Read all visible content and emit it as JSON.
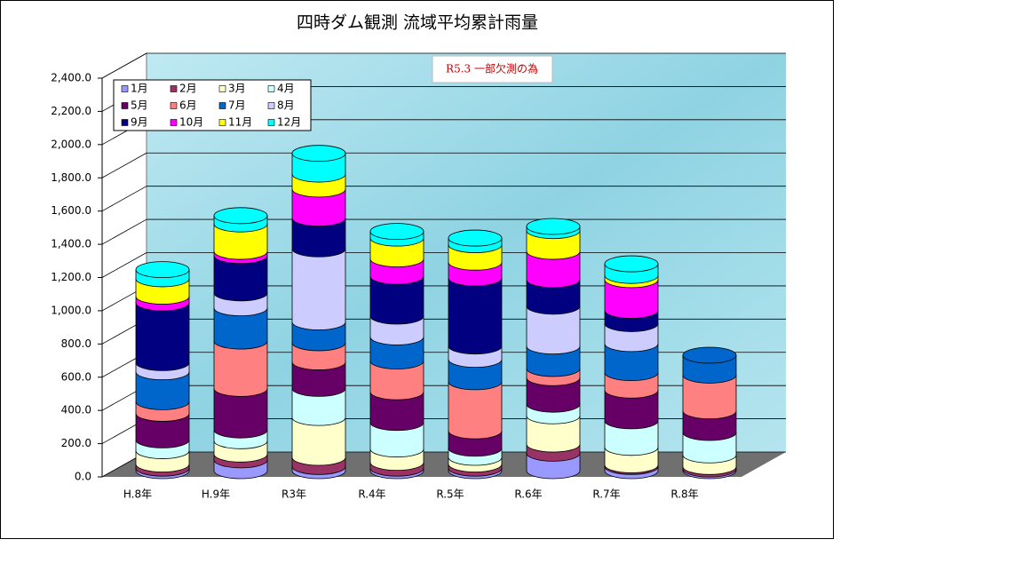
{
  "chart_data": {
    "type": "stacked-cylinder",
    "title": "四時ダム観測  流域平均累計雨量",
    "annotation": "R5.3 一部欠測の為",
    "categories": [
      "H.8年",
      "H.9年",
      "R3年",
      "R.4年",
      "R.5年",
      "R.6年",
      "R.7年",
      "R.8年"
    ],
    "ylim": [
      0,
      2400
    ],
    "yticks": [
      {
        "value": 0,
        "label": "0.0"
      },
      {
        "value": 200,
        "label": "200.0"
      },
      {
        "value": 400,
        "label": "400.0"
      },
      {
        "value": 600,
        "label": "600.0"
      },
      {
        "value": 800,
        "label": "800.0"
      },
      {
        "value": 1000,
        "label": "1,000.0"
      },
      {
        "value": 1200,
        "label": "1,200.0"
      },
      {
        "value": 1400,
        "label": "1,400.0"
      },
      {
        "value": 1600,
        "label": "1,600.0"
      },
      {
        "value": 1800,
        "label": "1,800.0"
      },
      {
        "value": 2000,
        "label": "2,000.0"
      },
      {
        "value": 2200,
        "label": "2,200.0"
      },
      {
        "value": 2400,
        "label": "2,400.0"
      }
    ],
    "grid": true,
    "legend": "upper-left",
    "series": [
      {
        "name": "1月",
        "color": "#9999ff",
        "values": [
          15,
          65,
          25,
          15,
          15,
          105,
          25,
          10
        ]
      },
      {
        "name": "2月",
        "color": "#993366",
        "values": [
          25,
          35,
          55,
          35,
          25,
          55,
          10,
          15
        ]
      },
      {
        "name": "3月",
        "color": "#ffffcc",
        "values": [
          80,
          80,
          240,
          80,
          40,
          170,
          105,
          70
        ]
      },
      {
        "name": "4月",
        "color": "#ccffff",
        "values": [
          65,
          65,
          175,
          160,
          55,
          70,
          160,
          135
        ]
      },
      {
        "name": "5月",
        "color": "#660066",
        "values": [
          160,
          250,
          160,
          185,
          105,
          160,
          185,
          130
        ]
      },
      {
        "name": "6月",
        "color": "#ff8080",
        "values": [
          70,
          285,
          115,
          185,
          295,
          55,
          105,
          215
        ]
      },
      {
        "name": "7月",
        "color": "#0066cc",
        "values": [
          180,
          200,
          125,
          145,
          135,
          135,
          175,
          120
        ]
      },
      {
        "name": "8月",
        "color": "#ccccff",
        "values": [
          55,
          90,
          440,
          125,
          80,
          240,
          120,
          null
        ]
      },
      {
        "name": "9月",
        "color": "#000080",
        "values": [
          360,
          225,
          185,
          240,
          410,
          160,
          80,
          null
        ]
      },
      {
        "name": "10月",
        "color": "#ff00ff",
        "values": [
          40,
          25,
          175,
          105,
          95,
          170,
          185,
          null
        ]
      },
      {
        "name": "11月",
        "color": "#ffff00",
        "values": [
          105,
          165,
          90,
          125,
          105,
          125,
          25,
          null
        ]
      },
      {
        "name": "12月",
        "color": "#00ffff",
        "values": [
          55,
          50,
          125,
          40,
          40,
          25,
          70,
          null
        ]
      }
    ]
  }
}
